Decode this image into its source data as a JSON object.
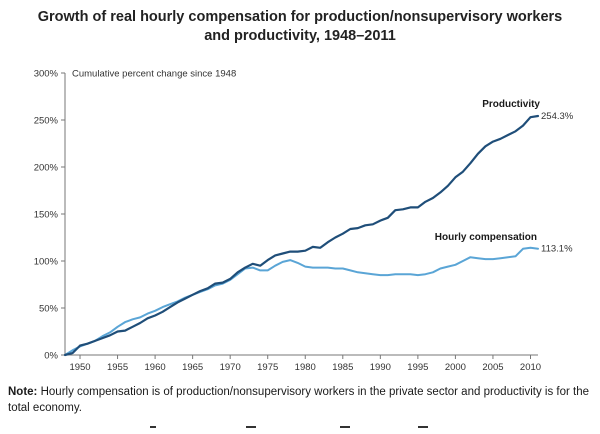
{
  "title_line1": "Growth of real hourly compensation for production/nonsupervisory workers",
  "title_line2": "and productivity, 1948–2011",
  "note_label": "Note:",
  "note_text": "Hourly compensation is of production/nonsupervisory workers in the private sector and productivity is for the total economy.",
  "colors": {
    "productivity": "#1f4e79",
    "compensation": "#5aa5d6",
    "axis": "#777777"
  },
  "chart_data": {
    "type": "line",
    "title": "Growth of real hourly compensation for production/nonsupervisory workers and productivity, 1948–2011",
    "ylabel": "Cumulative percent change since 1948",
    "xlabel": "",
    "xlim": [
      1948,
      2011
    ],
    "ylim": [
      0,
      300
    ],
    "x_ticks": [
      1950,
      1955,
      1960,
      1965,
      1970,
      1975,
      1980,
      1985,
      1990,
      1995,
      2000,
      2005,
      2010
    ],
    "y_ticks": [
      0,
      50,
      100,
      150,
      200,
      250,
      300
    ],
    "y_tick_labels": [
      "0%",
      "50%",
      "100%",
      "150%",
      "200%",
      "250%",
      "300%"
    ],
    "grid": false,
    "series": [
      {
        "name": "Productivity",
        "end_label": "254.3%",
        "color": "#1f4e79",
        "x": [
          1948,
          1949,
          1950,
          1951,
          1952,
          1953,
          1954,
          1955,
          1956,
          1957,
          1958,
          1959,
          1960,
          1961,
          1962,
          1963,
          1964,
          1965,
          1966,
          1967,
          1968,
          1969,
          1970,
          1971,
          1972,
          1973,
          1974,
          1975,
          1976,
          1977,
          1978,
          1979,
          1980,
          1981,
          1982,
          1983,
          1984,
          1985,
          1986,
          1987,
          1988,
          1989,
          1990,
          1991,
          1992,
          1993,
          1994,
          1995,
          1996,
          1997,
          1998,
          1999,
          2000,
          2001,
          2002,
          2003,
          2004,
          2005,
          2006,
          2007,
          2008,
          2009,
          2010,
          2011
        ],
        "y": [
          0,
          2,
          10,
          12,
          15,
          18,
          21,
          25,
          26,
          30,
          34,
          39,
          42,
          46,
          51,
          56,
          60,
          64,
          68,
          71,
          76,
          77,
          81,
          88,
          93,
          97,
          95,
          101,
          106,
          108,
          110,
          110,
          111,
          115,
          114,
          120,
          125,
          129,
          134,
          135,
          138,
          139,
          143,
          146,
          154,
          155,
          157,
          157,
          163,
          167,
          173,
          180,
          189,
          195,
          204,
          214,
          222,
          227,
          230,
          234,
          238,
          244,
          253,
          254.3
        ]
      },
      {
        "name": "Hourly compensation",
        "end_label": "113.1%",
        "color": "#5aa5d6",
        "x": [
          1948,
          1949,
          1950,
          1951,
          1952,
          1953,
          1954,
          1955,
          1956,
          1957,
          1958,
          1959,
          1960,
          1961,
          1962,
          1963,
          1964,
          1965,
          1966,
          1967,
          1968,
          1969,
          1970,
          1971,
          1972,
          1973,
          1974,
          1975,
          1976,
          1977,
          1978,
          1979,
          1980,
          1981,
          1982,
          1983,
          1984,
          1985,
          1986,
          1987,
          1988,
          1989,
          1990,
          1991,
          1992,
          1993,
          1994,
          1995,
          1996,
          1997,
          1998,
          1999,
          2000,
          2001,
          2002,
          2003,
          2004,
          2005,
          2006,
          2007,
          2008,
          2009,
          2010,
          2011
        ],
        "y": [
          0,
          5,
          9,
          12,
          15,
          20,
          24,
          30,
          35,
          38,
          40,
          44,
          47,
          51,
          54,
          57,
          61,
          64,
          67,
          70,
          74,
          76,
          80,
          86,
          92,
          93,
          90,
          90,
          95,
          99,
          101,
          98,
          94,
          93,
          93,
          93,
          92,
          92,
          90,
          88,
          87,
          86,
          85,
          85,
          86,
          86,
          86,
          85,
          86,
          88,
          92,
          94,
          96,
          100,
          104,
          103,
          102,
          102,
          103,
          104,
          105,
          113,
          114,
          113.1
        ]
      }
    ]
  }
}
